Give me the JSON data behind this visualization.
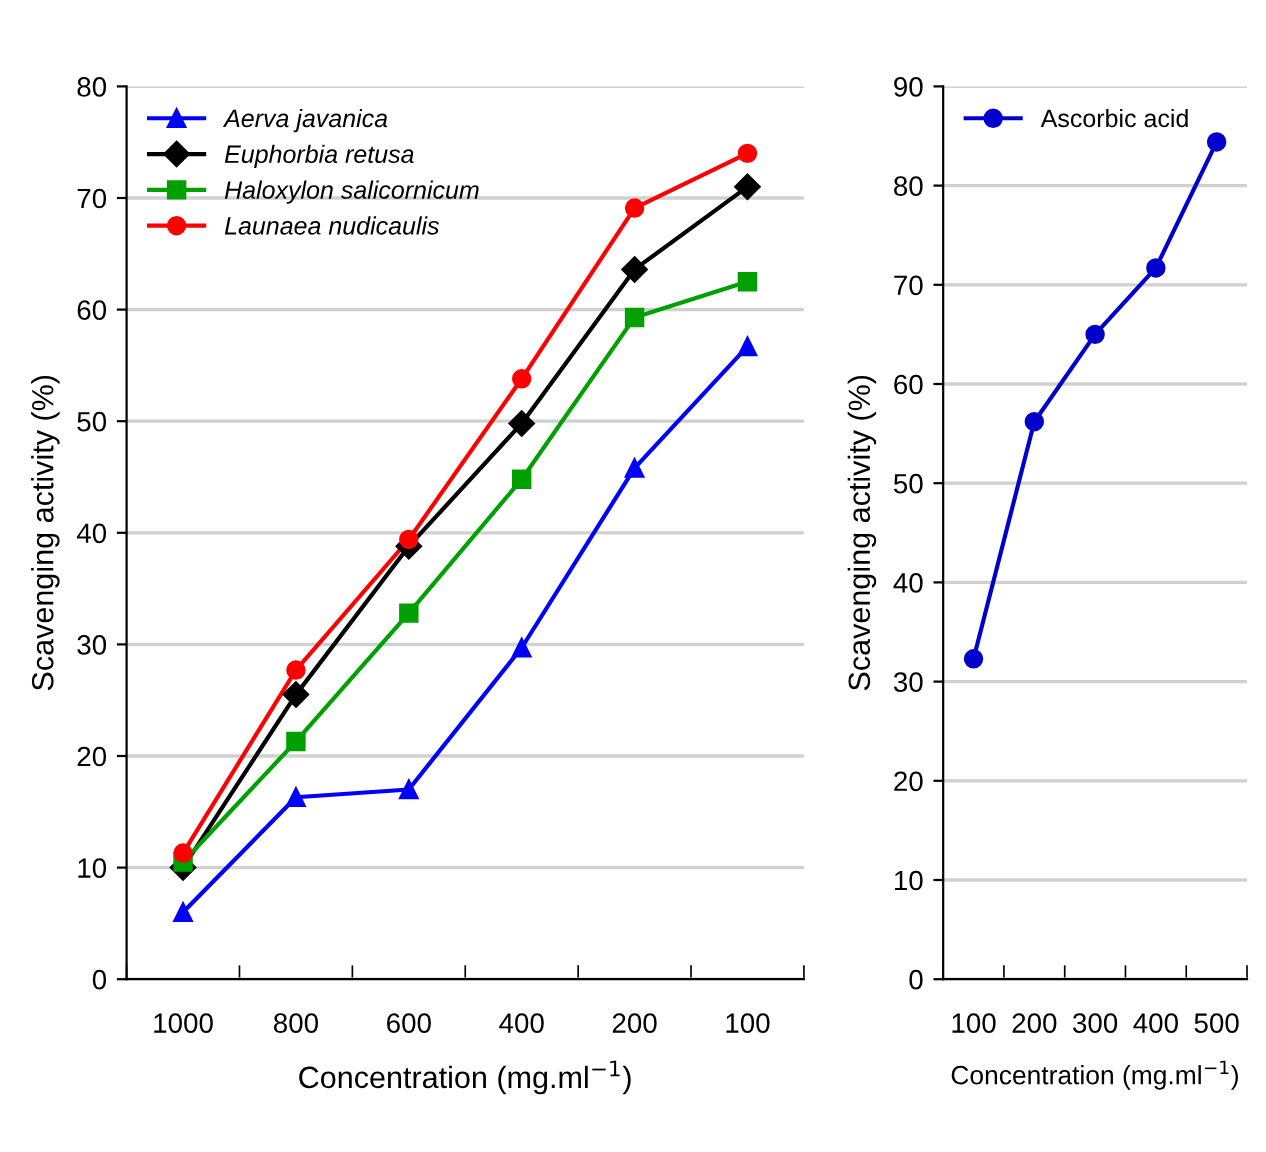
{
  "chart_data": [
    {
      "type": "line",
      "xlabel": "Concentration (mg.ml$^{−1}$)",
      "ylabel": "Scavenging activity (%)",
      "categories": [
        "1000",
        "800",
        "600",
        "400",
        "200",
        "100"
      ],
      "ylim": [
        0,
        80
      ],
      "yticks": [
        0,
        10,
        20,
        30,
        40,
        50,
        60,
        70,
        80
      ],
      "grid": "y",
      "legend": "top left",
      "series": [
        {
          "name": "Aerva javanica",
          "color": "#0000ff",
          "marker": "triangle",
          "values": [
            6,
            16.3,
            17,
            29.7,
            45.8,
            56.7
          ]
        },
        {
          "name": "Euphorbia retusa",
          "color": "#000000",
          "marker": "diamond",
          "values": [
            10,
            25.5,
            38.8,
            49.8,
            63.6,
            71
          ]
        },
        {
          "name": "Haloxylon salicornicum",
          "color": "#00a000",
          "marker": "square",
          "values": [
            10.5,
            21.3,
            32.8,
            44.8,
            59.3,
            62.5
          ]
        },
        {
          "name": "Launaea nudicaulis",
          "color": "#ff0000",
          "marker": "circle",
          "values": [
            11.3,
            27.7,
            39.4,
            53.8,
            69.1,
            74
          ]
        }
      ]
    },
    {
      "type": "line",
      "xlabel": "Concentration (mg.ml$^{−1}$)",
      "ylabel": "Scavenging activity (%)",
      "categories": [
        "100",
        "200",
        "300",
        "400",
        "500"
      ],
      "ylim": [
        0,
        90
      ],
      "yticks": [
        0,
        10,
        20,
        30,
        40,
        50,
        60,
        70,
        80,
        90
      ],
      "grid": "y",
      "legend": "top left",
      "series": [
        {
          "name": "Ascorbic acid",
          "color": "#0000cc",
          "marker": "circle",
          "values": [
            32.3,
            56.2,
            65,
            71.7,
            84.4
          ]
        }
      ]
    }
  ]
}
